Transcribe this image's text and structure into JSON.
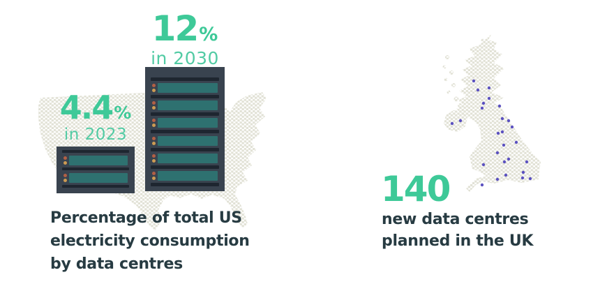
{
  "colors": {
    "accent_green": "#3ec998",
    "accent_green_light": "#52cba4",
    "dark_text": "#273b42",
    "rack_body": "#39434f",
    "rack_bar": "#1e2630",
    "drive_teal": "#2e7170",
    "led_top": "#b25f45",
    "led_bottom": "#cd9b52",
    "map_fill": "#e1e1d5",
    "uk_dot": "#5b51c0"
  },
  "us": {
    "stat_2030": {
      "value": "12",
      "unit": "%",
      "caption": "in 2030"
    },
    "stat_2023": {
      "value": "4.4",
      "unit": "%",
      "caption": "in 2023"
    },
    "rack_2030_slots": 6,
    "rack_2023_slots": 2,
    "caption_lines": [
      "Percentage of total US",
      "electricity consumption",
      "by data centres"
    ]
  },
  "uk": {
    "stat": {
      "value": "140"
    },
    "caption_lines": [
      "new data centres",
      "planned in the UK"
    ],
    "map_dots": [
      [
        67,
        68
      ],
      [
        73,
        81
      ],
      [
        89,
        78
      ],
      [
        89,
        93
      ],
      [
        81,
        100
      ],
      [
        79,
        107
      ],
      [
        104,
        104
      ],
      [
        108,
        122
      ],
      [
        117,
        125
      ],
      [
        122,
        134
      ],
      [
        102,
        143
      ],
      [
        108,
        141
      ],
      [
        128,
        156
      ],
      [
        110,
        160
      ],
      [
        101,
        171
      ],
      [
        117,
        180
      ],
      [
        111,
        184
      ],
      [
        143,
        184
      ],
      [
        81,
        188
      ],
      [
        101,
        209
      ],
      [
        113,
        203
      ],
      [
        138,
        199
      ],
      [
        137,
        207
      ],
      [
        148,
        208
      ],
      [
        79,
        217
      ],
      [
        36,
        129
      ],
      [
        48,
        125
      ]
    ]
  },
  "chart_data": [
    {
      "type": "bar",
      "title": "Percentage of total US electricity consumption by data centres",
      "categories": [
        "2023",
        "2030"
      ],
      "values": [
        4.4,
        12
      ],
      "unit": "%",
      "style": "pictogram: server racks (2 slots vs 6 slots) drawn over a dotted US map",
      "legend_position": "none"
    },
    {
      "type": "scatter",
      "title": "new data centres planned in the UK",
      "stat_value": 140,
      "unit": "data centres",
      "style": "purple location dots over a dotted UK map",
      "points_shown": 27
    }
  ]
}
